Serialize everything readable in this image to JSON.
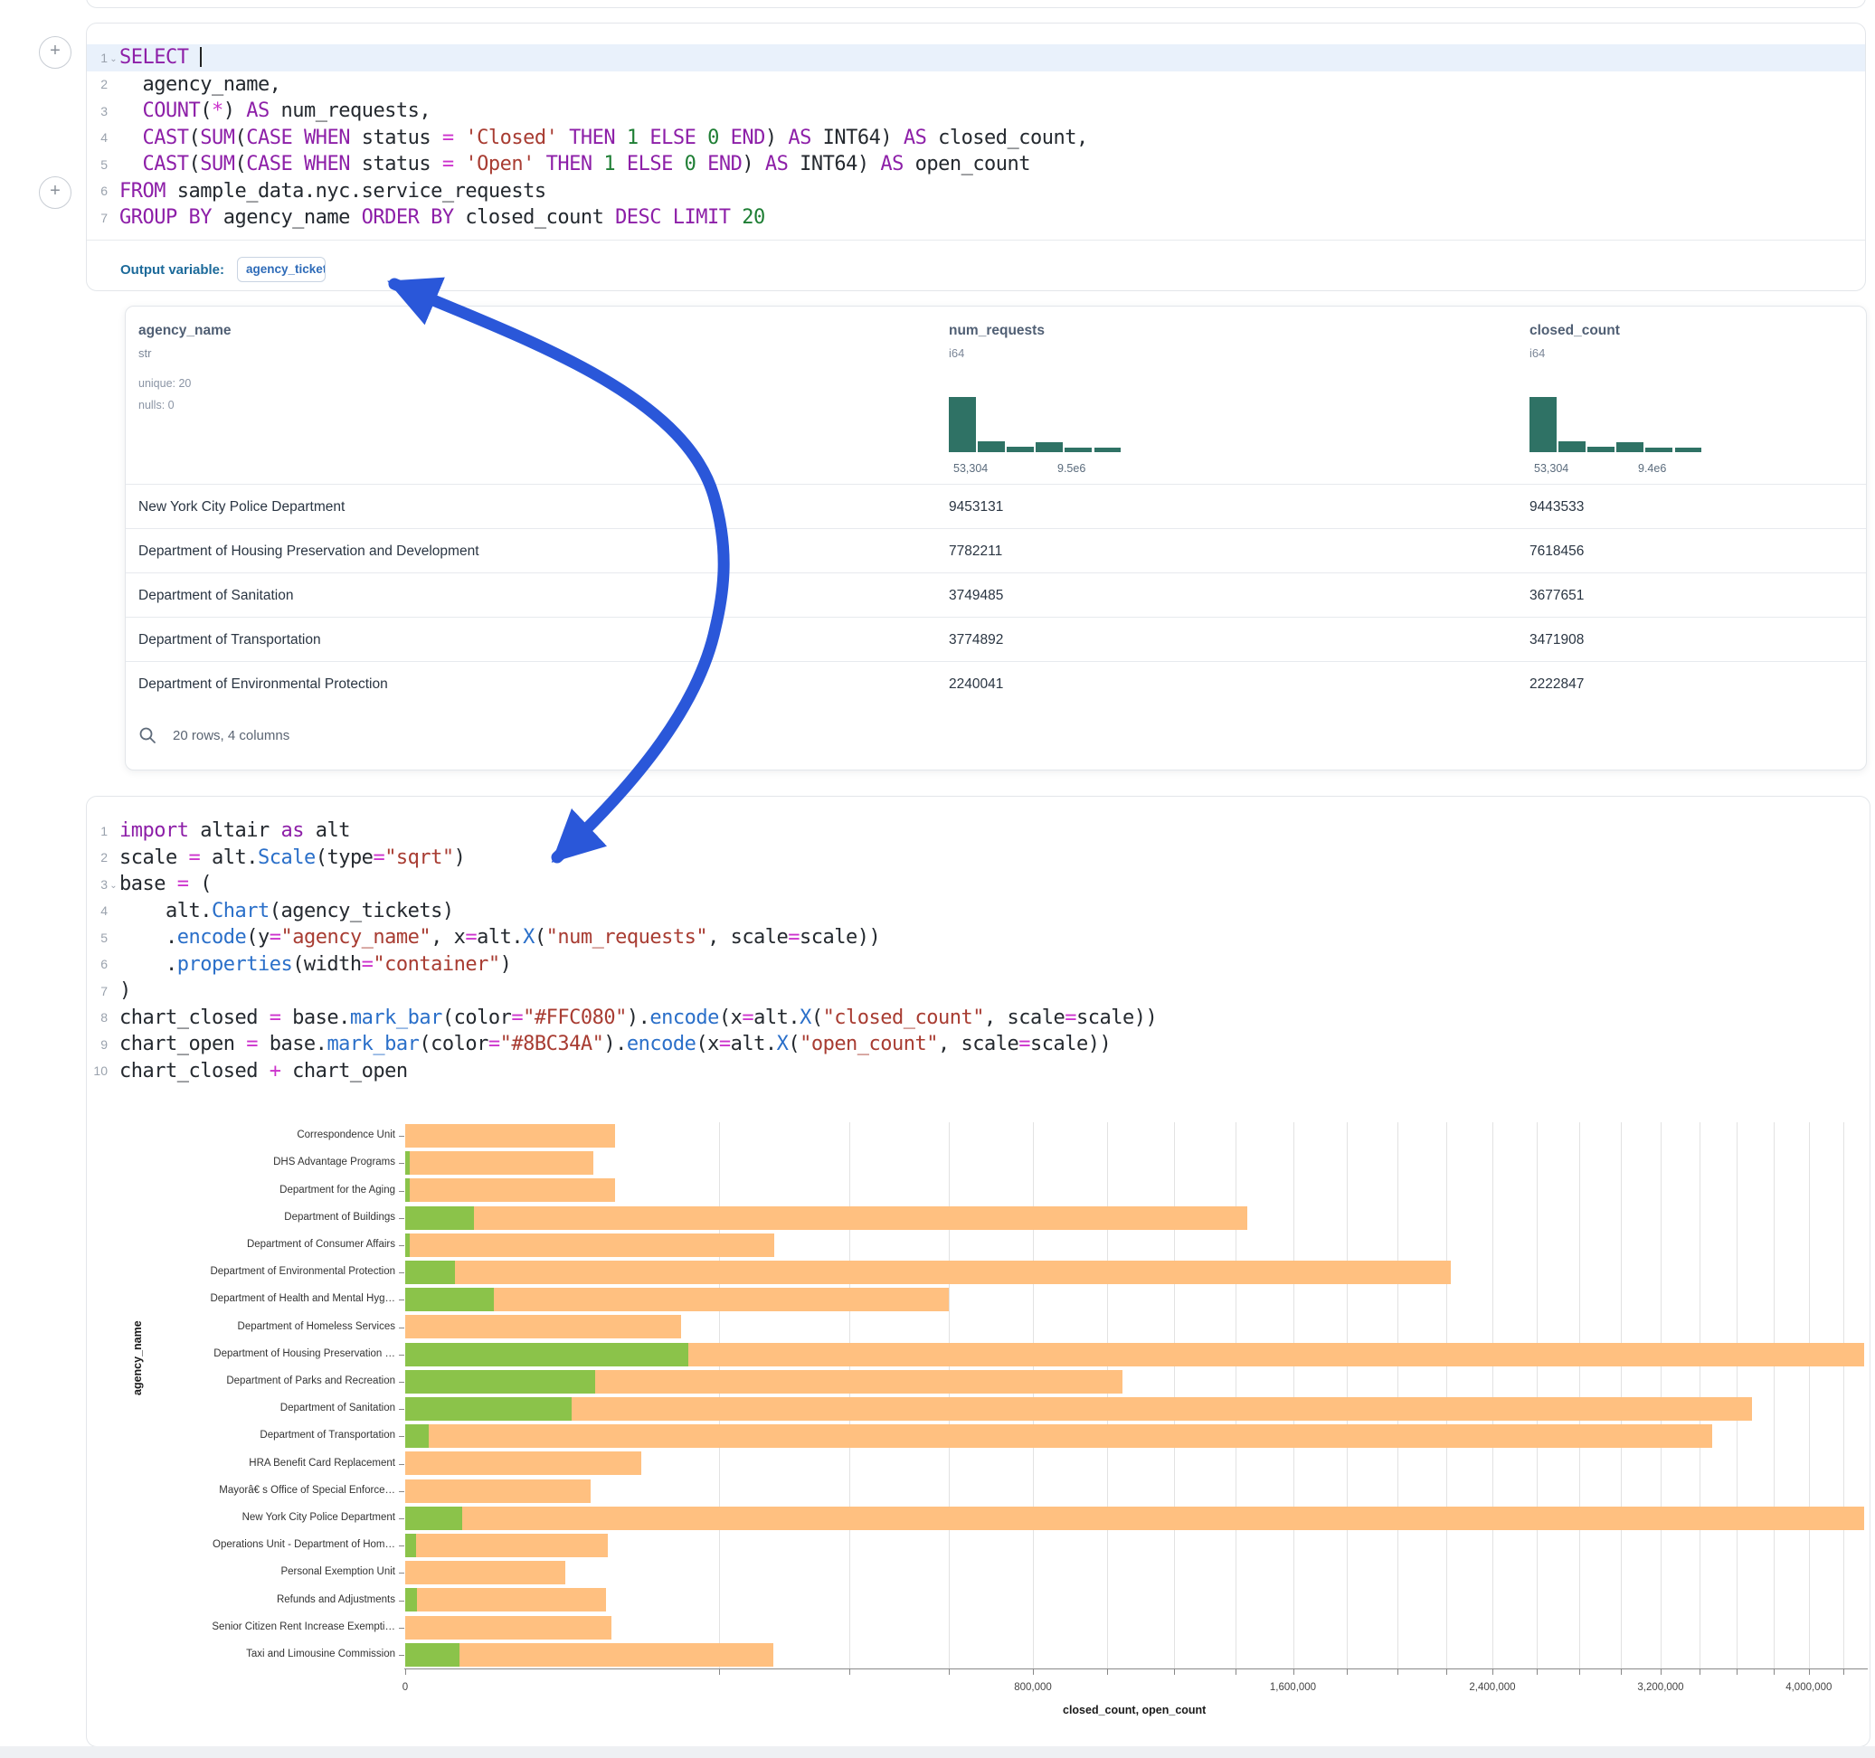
{
  "sql_cell": {
    "lines": [
      {
        "num": "1",
        "fold": true,
        "hl": true,
        "tokens": [
          [
            "kw",
            "SELECT"
          ],
          [
            "pl",
            " "
          ],
          [
            "cur",
            ""
          ]
        ]
      },
      {
        "num": "2",
        "tokens": [
          [
            "pl",
            "  agency_name,"
          ]
        ]
      },
      {
        "num": "3",
        "tokens": [
          [
            "pl",
            "  "
          ],
          [
            "kw",
            "COUNT"
          ],
          [
            "pl",
            "("
          ],
          [
            "op",
            "*"
          ],
          [
            "pl",
            ") "
          ],
          [
            "kw",
            "AS"
          ],
          [
            "pl",
            " num_requests,"
          ]
        ]
      },
      {
        "num": "4",
        "tokens": [
          [
            "pl",
            "  "
          ],
          [
            "kw",
            "CAST"
          ],
          [
            "pl",
            "("
          ],
          [
            "kw",
            "SUM"
          ],
          [
            "pl",
            "("
          ],
          [
            "kw",
            "CASE"
          ],
          [
            "pl",
            " "
          ],
          [
            "kw",
            "WHEN"
          ],
          [
            "pl",
            " status "
          ],
          [
            "op",
            "="
          ],
          [
            "pl",
            " "
          ],
          [
            "str",
            "'Closed'"
          ],
          [
            "pl",
            " "
          ],
          [
            "kw",
            "THEN"
          ],
          [
            "pl",
            " "
          ],
          [
            "num",
            "1"
          ],
          [
            "pl",
            " "
          ],
          [
            "kw",
            "ELSE"
          ],
          [
            "pl",
            " "
          ],
          [
            "num",
            "0"
          ],
          [
            "pl",
            " "
          ],
          [
            "kw",
            "END"
          ],
          [
            "pl",
            ") "
          ],
          [
            "kw",
            "AS"
          ],
          [
            "pl",
            " INT64) "
          ],
          [
            "kw",
            "AS"
          ],
          [
            "pl",
            " closed_count,"
          ]
        ]
      },
      {
        "num": "5",
        "tokens": [
          [
            "pl",
            "  "
          ],
          [
            "kw",
            "CAST"
          ],
          [
            "pl",
            "("
          ],
          [
            "kw",
            "SUM"
          ],
          [
            "pl",
            "("
          ],
          [
            "kw",
            "CASE"
          ],
          [
            "pl",
            " "
          ],
          [
            "kw",
            "WHEN"
          ],
          [
            "pl",
            " status "
          ],
          [
            "op",
            "="
          ],
          [
            "pl",
            " "
          ],
          [
            "str",
            "'Open'"
          ],
          [
            "pl",
            " "
          ],
          [
            "kw",
            "THEN"
          ],
          [
            "pl",
            " "
          ],
          [
            "num",
            "1"
          ],
          [
            "pl",
            " "
          ],
          [
            "kw",
            "ELSE"
          ],
          [
            "pl",
            " "
          ],
          [
            "num",
            "0"
          ],
          [
            "pl",
            " "
          ],
          [
            "kw",
            "END"
          ],
          [
            "pl",
            ") "
          ],
          [
            "kw",
            "AS"
          ],
          [
            "pl",
            " INT64) "
          ],
          [
            "kw",
            "AS"
          ],
          [
            "pl",
            " open_count"
          ]
        ]
      },
      {
        "num": "6",
        "tokens": [
          [
            "kw",
            "FROM"
          ],
          [
            "pl",
            " sample_data.nyc.service_requests"
          ]
        ]
      },
      {
        "num": "7",
        "tokens": [
          [
            "kw",
            "GROUP BY"
          ],
          [
            "pl",
            " agency_name "
          ],
          [
            "kw",
            "ORDER BY"
          ],
          [
            "pl",
            " closed_count "
          ],
          [
            "kw",
            "DESC"
          ],
          [
            "pl",
            " "
          ],
          [
            "kw",
            "LIMIT"
          ],
          [
            "pl",
            " "
          ],
          [
            "num",
            "20"
          ]
        ]
      }
    ]
  },
  "output_variable": {
    "label": "Output variable:",
    "chip": "agency_tickets"
  },
  "table": {
    "columns": [
      {
        "name": "agency_name",
        "type": "str",
        "meta": [
          "unique: 20",
          "nulls: 0"
        ]
      },
      {
        "name": "num_requests",
        "type": "i64",
        "hist": {
          "bars": [
            100,
            19,
            10,
            18,
            9,
            9
          ],
          "min_label": "53,304",
          "max_label": "9.5e6"
        }
      },
      {
        "name": "closed_count",
        "type": "i64",
        "hist": {
          "bars": [
            100,
            19,
            10,
            18,
            9,
            9
          ],
          "min_label": "53,304",
          "max_label": "9.4e6"
        }
      }
    ],
    "rows": [
      [
        "New York City Police Department",
        "9453131",
        "9443533"
      ],
      [
        "Department of Housing Preservation and Development",
        "7782211",
        "7618456"
      ],
      [
        "Department of Sanitation",
        "3749485",
        "3677651"
      ],
      [
        "Department of Transportation",
        "3774892",
        "3471908"
      ],
      [
        "Department of Environmental Protection",
        "2240041",
        "2222847"
      ]
    ],
    "footer": "20 rows, 4 columns"
  },
  "python_cell": {
    "lines": [
      {
        "num": "1",
        "tokens": [
          [
            "kw",
            "import"
          ],
          [
            "pl",
            " altair "
          ],
          [
            "kw",
            "as"
          ],
          [
            "pl",
            " alt"
          ]
        ]
      },
      {
        "num": "2",
        "tokens": [
          [
            "pl",
            "scale "
          ],
          [
            "op",
            "="
          ],
          [
            "pl",
            " alt."
          ],
          [
            "fn",
            "Scale"
          ],
          [
            "pl",
            "(type"
          ],
          [
            "op",
            "="
          ],
          [
            "str",
            "\"sqrt\""
          ],
          [
            "pl",
            ")"
          ]
        ]
      },
      {
        "num": "3",
        "fold": true,
        "tokens": [
          [
            "pl",
            "base "
          ],
          [
            "op",
            "="
          ],
          [
            "pl",
            " ("
          ]
        ]
      },
      {
        "num": "4",
        "tokens": [
          [
            "pl",
            "    alt."
          ],
          [
            "fn",
            "Chart"
          ],
          [
            "pl",
            "(agency_tickets)"
          ]
        ]
      },
      {
        "num": "5",
        "tokens": [
          [
            "pl",
            "    ."
          ],
          [
            "fn",
            "encode"
          ],
          [
            "pl",
            "(y"
          ],
          [
            "op",
            "="
          ],
          [
            "str",
            "\"agency_name\""
          ],
          [
            "pl",
            ", x"
          ],
          [
            "op",
            "="
          ],
          [
            "pl",
            "alt."
          ],
          [
            "fn",
            "X"
          ],
          [
            "pl",
            "("
          ],
          [
            "str",
            "\"num_requests\""
          ],
          [
            "pl",
            ", scale"
          ],
          [
            "op",
            "="
          ],
          [
            "pl",
            "scale))"
          ]
        ]
      },
      {
        "num": "6",
        "tokens": [
          [
            "pl",
            "    ."
          ],
          [
            "fn",
            "properties"
          ],
          [
            "pl",
            "(width"
          ],
          [
            "op",
            "="
          ],
          [
            "str",
            "\"container\""
          ],
          [
            "pl",
            ")"
          ]
        ]
      },
      {
        "num": "7",
        "tokens": [
          [
            "pl",
            ")"
          ]
        ]
      },
      {
        "num": "8",
        "tokens": [
          [
            "pl",
            "chart_closed "
          ],
          [
            "op",
            "="
          ],
          [
            "pl",
            " base."
          ],
          [
            "fn",
            "mark_bar"
          ],
          [
            "pl",
            "(color"
          ],
          [
            "op",
            "="
          ],
          [
            "str",
            "\"#FFC080\""
          ],
          [
            "pl",
            ")."
          ],
          [
            "fn",
            "encode"
          ],
          [
            "pl",
            "(x"
          ],
          [
            "op",
            "="
          ],
          [
            "pl",
            "alt."
          ],
          [
            "fn",
            "X"
          ],
          [
            "pl",
            "("
          ],
          [
            "str",
            "\"closed_count\""
          ],
          [
            "pl",
            ", scale"
          ],
          [
            "op",
            "="
          ],
          [
            "pl",
            "scale))"
          ]
        ]
      },
      {
        "num": "9",
        "tokens": [
          [
            "pl",
            "chart_open "
          ],
          [
            "op",
            "="
          ],
          [
            "pl",
            " base."
          ],
          [
            "fn",
            "mark_bar"
          ],
          [
            "pl",
            "(color"
          ],
          [
            "op",
            "="
          ],
          [
            "str",
            "\"#8BC34A\""
          ],
          [
            "pl",
            ")."
          ],
          [
            "fn",
            "encode"
          ],
          [
            "pl",
            "(x"
          ],
          [
            "op",
            "="
          ],
          [
            "pl",
            "alt."
          ],
          [
            "fn",
            "X"
          ],
          [
            "pl",
            "("
          ],
          [
            "str",
            "\"open_count\""
          ],
          [
            "pl",
            ", scale"
          ],
          [
            "op",
            "="
          ],
          [
            "pl",
            "scale))"
          ]
        ]
      },
      {
        "num": "10",
        "tokens": [
          [
            "pl",
            "chart_closed "
          ],
          [
            "op",
            "+"
          ],
          [
            "pl",
            " chart_open"
          ]
        ]
      }
    ]
  },
  "chart_data": {
    "type": "bar",
    "orientation": "horizontal",
    "x_scale_type": "sqrt",
    "xlabel": "closed_count, open_count",
    "ylabel": "agency_name",
    "x_ticks": [
      0,
      800000,
      1600000,
      2400000,
      3200000,
      4000000
    ],
    "x_tick_labels": [
      "0",
      "800,000",
      "1,600,000",
      "2,400,000",
      "3,200,000",
      "4,000,000"
    ],
    "grid_step": 200000,
    "x_visible_max": 4330000,
    "legend": "none",
    "categories": [
      "Correspondence Unit",
      "DHS Advantage Programs",
      "Department for the Aging",
      "Department of Buildings",
      "Department of Consumer Affairs",
      "Department of Environmental Protection",
      "Department of Health and Mental Hyg…",
      "Department of Homeless Services",
      "Department of Housing Preservation …",
      "Department of Parks and Recreation",
      "Department of Sanitation",
      "Department of Transportation",
      "HRA Benefit Card Replacement",
      "Mayorâ€ s Office of Special Enforce…",
      "New York City Police Department",
      "Operations Unit - Department of Hom…",
      "Personal Exemption Unit",
      "Refunds and Adjustments",
      "Senior Citizen Rent Increase Exempti…",
      "Taxi and Limousine Commission"
    ],
    "series": [
      {
        "name": "closed_count",
        "color": "#FFC080",
        "values": [
          89000,
          72000,
          89000,
          1440000,
          277000,
          2220000,
          600000,
          154000,
          7620000,
          1045000,
          3680000,
          3470000,
          113000,
          70000,
          9440000,
          83000,
          52000,
          82000,
          86000,
          275000
        ]
      },
      {
        "name": "open_count",
        "color": "#8BC34A",
        "values": [
          0,
          40,
          40,
          9600,
          40,
          5000,
          16000,
          0,
          163000,
          73000,
          56000,
          1100,
          0,
          0,
          6500,
          250,
          0,
          280,
          0,
          6000
        ]
      }
    ]
  },
  "annotation": {
    "arrow_color": "#2a57d9"
  },
  "histogram_color": "#2f7265"
}
